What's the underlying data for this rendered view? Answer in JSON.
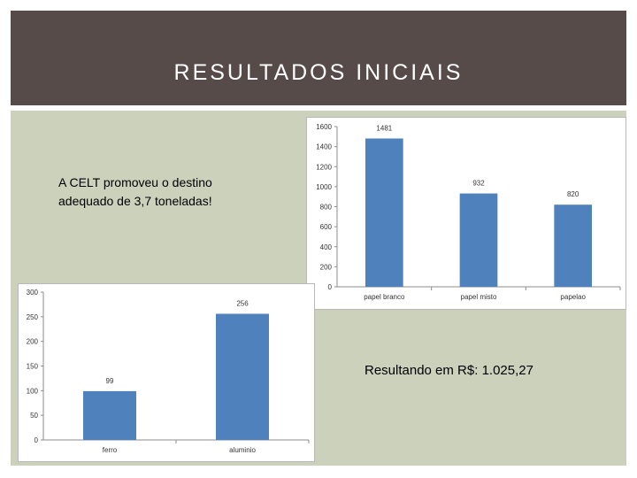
{
  "slide": {
    "title": "RESULTADOS INICIAIS",
    "text_line1": "A CELT promoveu o destino",
    "text_line2": "adequado de 3,7 toneladas!",
    "result": "Resultando em R$: 1.025,27"
  },
  "colors": {
    "title_bg": "#564b48",
    "panel_bg": "#ccd1bc",
    "bar": "#4f81bd"
  },
  "chart_data": [
    {
      "type": "bar",
      "categories": [
        "papel branco",
        "papel misto",
        "papelao"
      ],
      "values": [
        1481,
        932,
        820
      ],
      "ylim": [
        0,
        1600
      ],
      "yticks": [
        0,
        200,
        400,
        600,
        800,
        1000,
        1200,
        1400,
        1600
      ],
      "grid": false
    },
    {
      "type": "bar",
      "categories": [
        "ferro",
        "aluminio"
      ],
      "values": [
        99,
        256
      ],
      "ylim": [
        0,
        300
      ],
      "yticks": [
        0,
        50,
        100,
        150,
        200,
        250,
        300
      ],
      "grid": false
    }
  ]
}
